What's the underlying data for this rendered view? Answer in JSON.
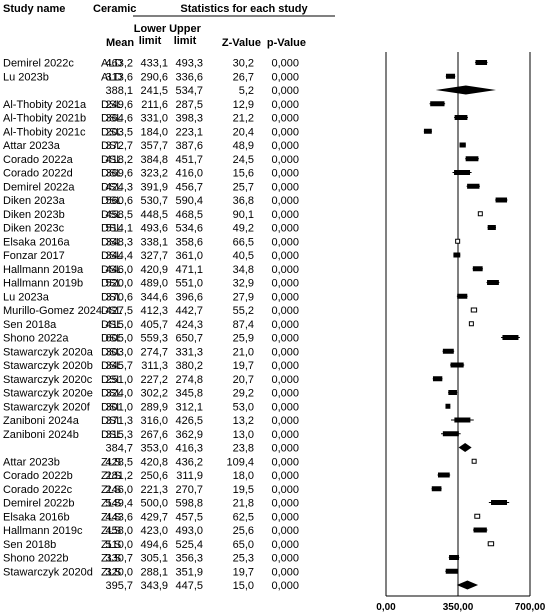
{
  "headers": {
    "study_name": "Study name",
    "ceramic": "Ceramic",
    "stats_title": "Statistics for each study",
    "mean": "Mean",
    "lower_1": "Lower",
    "lower_2": "limit",
    "upper_1": "Upper",
    "upper_2": "limit",
    "z": "Z-Value",
    "p": "p-Value"
  },
  "chart_data": {
    "type": "forest",
    "xlim": [
      0,
      700
    ],
    "x_ticks": [
      "0,00",
      "350,00",
      "700,00"
    ],
    "reference_line": 350,
    "rows": [
      {
        "study": "Demirel 2022c",
        "ceramic": "ALD",
        "mean": "463,2",
        "lower": "433,1",
        "upper": "493,3",
        "z": "30,2",
        "p": "0,000",
        "m": 463.2,
        "lo": 433.1,
        "hi": 493.3
      },
      {
        "study": "Lu 2023b",
        "ceramic": "ALD",
        "mean": "313,6",
        "lower": "290,6",
        "upper": "336,6",
        "z": "26,7",
        "p": "0,000",
        "m": 313.6,
        "lo": 290.6,
        "hi": 336.6
      },
      {
        "study": "",
        "ceramic": "",
        "mean": "388,1",
        "lower": "241,5",
        "upper": "534,7",
        "z": "5,2",
        "p": "0,000",
        "m": 388.1,
        "lo": 241.5,
        "hi": 534.7,
        "summary": true
      },
      {
        "study": "Al-Thobity 2021a",
        "ceramic": "DSL",
        "mean": "249,6",
        "lower": "211,6",
        "upper": "287,5",
        "z": "12,9",
        "p": "0,000",
        "m": 249.6,
        "lo": 211.6,
        "hi": 287.5
      },
      {
        "study": "Al-Thobity 2021b",
        "ceramic": "DSL",
        "mean": "364,6",
        "lower": "331,0",
        "upper": "398,3",
        "z": "21,2",
        "p": "0,000",
        "m": 364.6,
        "lo": 331.0,
        "hi": 398.3
      },
      {
        "study": "Al-Thobity 2021c",
        "ceramic": "DSL",
        "mean": "203,5",
        "lower": "184,0",
        "upper": "223,1",
        "z": "20,4",
        "p": "0,000",
        "m": 203.5,
        "lo": 184.0,
        "hi": 223.1
      },
      {
        "study": "Attar 2023a",
        "ceramic": "DSL",
        "mean": "372,7",
        "lower": "357,7",
        "upper": "387,6",
        "z": "48,9",
        "p": "0,000",
        "m": 372.7,
        "lo": 357.7,
        "hi": 387.6
      },
      {
        "study": "Corado 2022a",
        "ceramic": "DSL",
        "mean": "418,2",
        "lower": "384,8",
        "upper": "451,7",
        "z": "24,5",
        "p": "0,000",
        "m": 418.2,
        "lo": 384.8,
        "hi": 451.7
      },
      {
        "study": "Corado 2022d",
        "ceramic": "DSL",
        "mean": "369,6",
        "lower": "323,2",
        "upper": "416,0",
        "z": "15,6",
        "p": "0,000",
        "m": 369.6,
        "lo": 323.2,
        "hi": 416.0
      },
      {
        "study": "Demirel 2022a",
        "ceramic": "DSL",
        "mean": "424,3",
        "lower": "391,9",
        "upper": "456,7",
        "z": "25,7",
        "p": "0,000",
        "m": 424.3,
        "lo": 391.9,
        "hi": 456.7
      },
      {
        "study": "Diken 2023a",
        "ceramic": "DSL",
        "mean": "560,6",
        "lower": "530,7",
        "upper": "590,4",
        "z": "36,8",
        "p": "0,000",
        "m": 560.6,
        "lo": 530.7,
        "hi": 590.4
      },
      {
        "study": "Diken 2023b",
        "ceramic": "DSL",
        "mean": "458,5",
        "lower": "448,5",
        "upper": "468,5",
        "z": "90,1",
        "p": "0,000",
        "m": 458.5,
        "lo": 448.5,
        "hi": 468.5
      },
      {
        "study": "Diken 2023c",
        "ceramic": "DSL",
        "mean": "514,1",
        "lower": "493,6",
        "upper": "534,6",
        "z": "49,2",
        "p": "0,000",
        "m": 514.1,
        "lo": 493.6,
        "hi": 534.6
      },
      {
        "study": "Elsaka 2016a",
        "ceramic": "DSL",
        "mean": "348,3",
        "lower": "338,1",
        "upper": "358,6",
        "z": "66,5",
        "p": "0,000",
        "m": 348.3,
        "lo": 338.1,
        "hi": 358.6
      },
      {
        "study": "Fonzar 2017",
        "ceramic": "DSL",
        "mean": "344,4",
        "lower": "327,7",
        "upper": "361,0",
        "z": "40,5",
        "p": "0,000",
        "m": 344.4,
        "lo": 327.7,
        "hi": 361.0
      },
      {
        "study": "Hallmann 2019a",
        "ceramic": "DSL",
        "mean": "446,0",
        "lower": "420,9",
        "upper": "471,1",
        "z": "34,8",
        "p": "0,000",
        "m": 446.0,
        "lo": 420.9,
        "hi": 471.1
      },
      {
        "study": "Hallmann 2019b",
        "ceramic": "DSL",
        "mean": "520,0",
        "lower": "489,0",
        "upper": "551,0",
        "z": "32,9",
        "p": "0,000",
        "m": 520.0,
        "lo": 489.0,
        "hi": 551.0
      },
      {
        "study": "Lu 2023a",
        "ceramic": "DSL",
        "mean": "370,6",
        "lower": "344,6",
        "upper": "396,6",
        "z": "27,9",
        "p": "0,000",
        "m": 370.6,
        "lo": 344.6,
        "hi": 396.6
      },
      {
        "study": "Murillo-Gomez 2024",
        "ceramic": "DSL",
        "mean": "427,5",
        "lower": "412,3",
        "upper": "442,7",
        "z": "55,2",
        "p": "0,000",
        "m": 427.5,
        "lo": 412.3,
        "hi": 442.7
      },
      {
        "study": "Sen 2018a",
        "ceramic": "DSL",
        "mean": "415,0",
        "lower": "405,7",
        "upper": "424,3",
        "z": "87,4",
        "p": "0,000",
        "m": 415.0,
        "lo": 405.7,
        "hi": 424.3
      },
      {
        "study": "Shono 2022a",
        "ceramic": "DSL",
        "mean": "605,0",
        "lower": "559,3",
        "upper": "650,7",
        "z": "25,9",
        "p": "0,000",
        "m": 605.0,
        "lo": 559.3,
        "hi": 650.7
      },
      {
        "study": "Stawarczyk 2020a",
        "ceramic": "DSL",
        "mean": "303,0",
        "lower": "274,7",
        "upper": "331,3",
        "z": "21,0",
        "p": "0,000",
        "m": 303.0,
        "lo": 274.7,
        "hi": 331.3
      },
      {
        "study": "Stawarczyk 2020b",
        "ceramic": "DSL",
        "mean": "345,7",
        "lower": "311,3",
        "upper": "380,2",
        "z": "19,7",
        "p": "0,000",
        "m": 345.7,
        "lo": 311.3,
        "hi": 380.2
      },
      {
        "study": "Stawarczyk 2020c",
        "ceramic": "DSL",
        "mean": "251,0",
        "lower": "227,2",
        "upper": "274,8",
        "z": "20,7",
        "p": "0,000",
        "m": 251.0,
        "lo": 227.2,
        "hi": 274.8
      },
      {
        "study": "Stawarczyk 2020e",
        "ceramic": "DSL",
        "mean": "324,0",
        "lower": "302,2",
        "upper": "345,8",
        "z": "29,2",
        "p": "0,000",
        "m": 324.0,
        "lo": 302.2,
        "hi": 345.8
      },
      {
        "study": "Stawarczyk 2020f",
        "ceramic": "DSL",
        "mean": "301,0",
        "lower": "289,9",
        "upper": "312,1",
        "z": "53,0",
        "p": "0,000",
        "m": 301.0,
        "lo": 289.9,
        "hi": 312.1
      },
      {
        "study": "Zaniboni 2024a",
        "ceramic": "DSL",
        "mean": "371,3",
        "lower": "316,0",
        "upper": "426,5",
        "z": "13,2",
        "p": "0,000",
        "m": 371.3,
        "lo": 316.0,
        "hi": 426.5
      },
      {
        "study": "Zaniboni 2024b",
        "ceramic": "DSL",
        "mean": "315,3",
        "lower": "267,6",
        "upper": "362,9",
        "z": "13,0",
        "p": "0,000",
        "m": 315.3,
        "lo": 267.6,
        "hi": 362.9
      },
      {
        "study": "",
        "ceramic": "",
        "mean": "384,7",
        "lower": "353,0",
        "upper": "416,3",
        "z": "23,8",
        "p": "0,000",
        "m": 384.7,
        "lo": 353.0,
        "hi": 416.3,
        "summary": true
      },
      {
        "study": "Attar 2023b",
        "ceramic": "ZLS",
        "mean": "428,5",
        "lower": "420,8",
        "upper": "436,2",
        "z": "109,4",
        "p": "0,000",
        "m": 428.5,
        "lo": 420.8,
        "hi": 436.2
      },
      {
        "study": "Corado 2022b",
        "ceramic": "ZLS",
        "mean": "281,2",
        "lower": "250,6",
        "upper": "311,9",
        "z": "18,0",
        "p": "0,000",
        "m": 281.2,
        "lo": 250.6,
        "hi": 311.9
      },
      {
        "study": "Corado 2022c",
        "ceramic": "ZLS",
        "mean": "246,0",
        "lower": "221,3",
        "upper": "270,7",
        "z": "19,5",
        "p": "0,000",
        "m": 246.0,
        "lo": 221.3,
        "hi": 270.7
      },
      {
        "study": "Demirel 2022b",
        "ceramic": "ZLS",
        "mean": "549,4",
        "lower": "500,0",
        "upper": "598,8",
        "z": "21,8",
        "p": "0,000",
        "m": 549.4,
        "lo": 500.0,
        "hi": 598.8
      },
      {
        "study": "Elsaka 2016b",
        "ceramic": "ZLS",
        "mean": "443,6",
        "lower": "429,7",
        "upper": "457,5",
        "z": "62,5",
        "p": "0,000",
        "m": 443.6,
        "lo": 429.7,
        "hi": 457.5
      },
      {
        "study": "Hallmann 2019c",
        "ceramic": "ZLS",
        "mean": "458,0",
        "lower": "423,0",
        "upper": "493,0",
        "z": "25,6",
        "p": "0,000",
        "m": 458.0,
        "lo": 423.0,
        "hi": 493.0
      },
      {
        "study": "Sen 2018b",
        "ceramic": "ZLS",
        "mean": "510,0",
        "lower": "494,6",
        "upper": "525,4",
        "z": "65,0",
        "p": "0,000",
        "m": 510.0,
        "lo": 494.6,
        "hi": 525.4
      },
      {
        "study": "Shono 2022b",
        "ceramic": "ZLS",
        "mean": "330,7",
        "lower": "305,1",
        "upper": "356,3",
        "z": "25,3",
        "p": "0,000",
        "m": 330.7,
        "lo": 305.1,
        "hi": 356.3
      },
      {
        "study": "Stawarczyk 2020d",
        "ceramic": "ZLS",
        "mean": "320,0",
        "lower": "288,1",
        "upper": "351,9",
        "z": "19,7",
        "p": "0,000",
        "m": 320.0,
        "lo": 288.1,
        "hi": 351.9
      },
      {
        "study": "",
        "ceramic": "",
        "mean": "395,7",
        "lower": "343,9",
        "upper": "447,5",
        "z": "15,0",
        "p": "0,000",
        "m": 395.7,
        "lo": 343.9,
        "hi": 447.5,
        "summary": true
      }
    ]
  }
}
